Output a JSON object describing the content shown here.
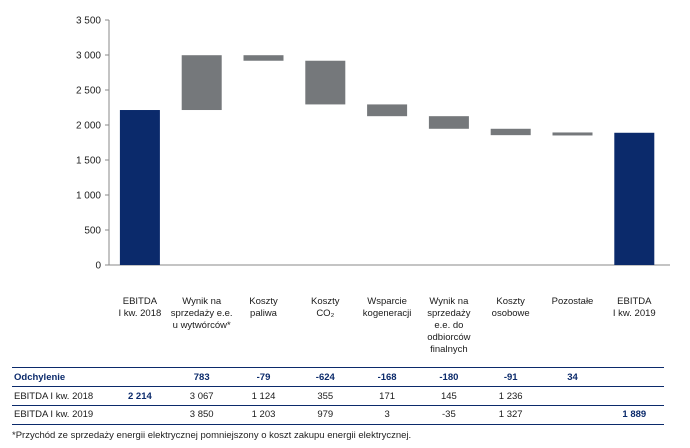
{
  "chart_data": {
    "type": "bar",
    "subtype": "waterfall",
    "ylim": [
      0,
      3500
    ],
    "yticks": [
      "0",
      "500",
      "1 000",
      "1 500",
      "2 000",
      "2 500",
      "3 000",
      "3 500"
    ],
    "ytick_values": [
      0,
      500,
      1000,
      1500,
      2000,
      2500,
      3000,
      3500
    ],
    "categories": [
      "EBITDA\nI kw. 2018",
      "Wynik na\nsprzedaży e.e.\nu wytwórców*",
      "Koszty\npaliwa",
      "Koszty\nCO₂",
      "Wsparcie\nkogeneracji",
      "Wynik na\nsprzedaży\ne.e. do\nodbiorców\nfinalnych",
      "Koszty\nosobowe",
      "Pozostałe",
      "EBITDA\nI kw. 2019"
    ],
    "bars": [
      {
        "start": 0,
        "end": 2214,
        "kind": "total"
      },
      {
        "start": 2214,
        "end": 2997,
        "kind": "delta"
      },
      {
        "start": 2997,
        "end": 2918,
        "kind": "delta"
      },
      {
        "start": 2918,
        "end": 2294,
        "kind": "delta"
      },
      {
        "start": 2294,
        "end": 2126,
        "kind": "delta"
      },
      {
        "start": 2126,
        "end": 1946,
        "kind": "delta"
      },
      {
        "start": 1946,
        "end": 1855,
        "kind": "delta"
      },
      {
        "start": 1855,
        "end": 1889,
        "kind": "delta"
      },
      {
        "start": 0,
        "end": 1889,
        "kind": "total"
      }
    ],
    "colors": {
      "total": "#0b2a6b",
      "delta": "#75787b"
    }
  },
  "table": {
    "rows": [
      {
        "label": "Odchylenie",
        "style": "header",
        "cells": [
          "",
          "783",
          "-79",
          "-624",
          "-168",
          "-180",
          "-91",
          "34",
          ""
        ]
      },
      {
        "label": "EBITDA I kw. 2018",
        "style": "normal",
        "cells": [
          "2 214",
          "3 067",
          "1 124",
          "355",
          "171",
          "145",
          "1 236",
          "",
          ""
        ]
      },
      {
        "label": "EBITDA I kw. 2019",
        "style": "normal",
        "cells": [
          "",
          "3 850",
          "1 203",
          "979",
          "3",
          "-35",
          "1 327",
          "",
          "1 889"
        ]
      }
    ]
  },
  "footnote": "*Przychód ze sprzedaży energii elektrycznej pomniejszony o koszt zakupu energii elektrycznej."
}
